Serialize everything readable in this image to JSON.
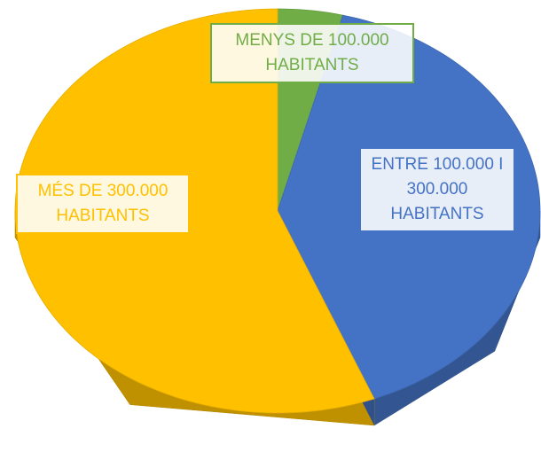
{
  "chart_data": {
    "type": "pie",
    "three_d": true,
    "categories": [
      "MENYS DE 100.000 HABITANTS",
      "ENTRE 100.000 I 300.000 HABITANTS",
      "MÉS DE 300.000 HABITANTS"
    ],
    "values": [
      4,
      40,
      56
    ],
    "colors": [
      "#70ad47",
      "#4472c4",
      "#ffc000"
    ]
  }
}
